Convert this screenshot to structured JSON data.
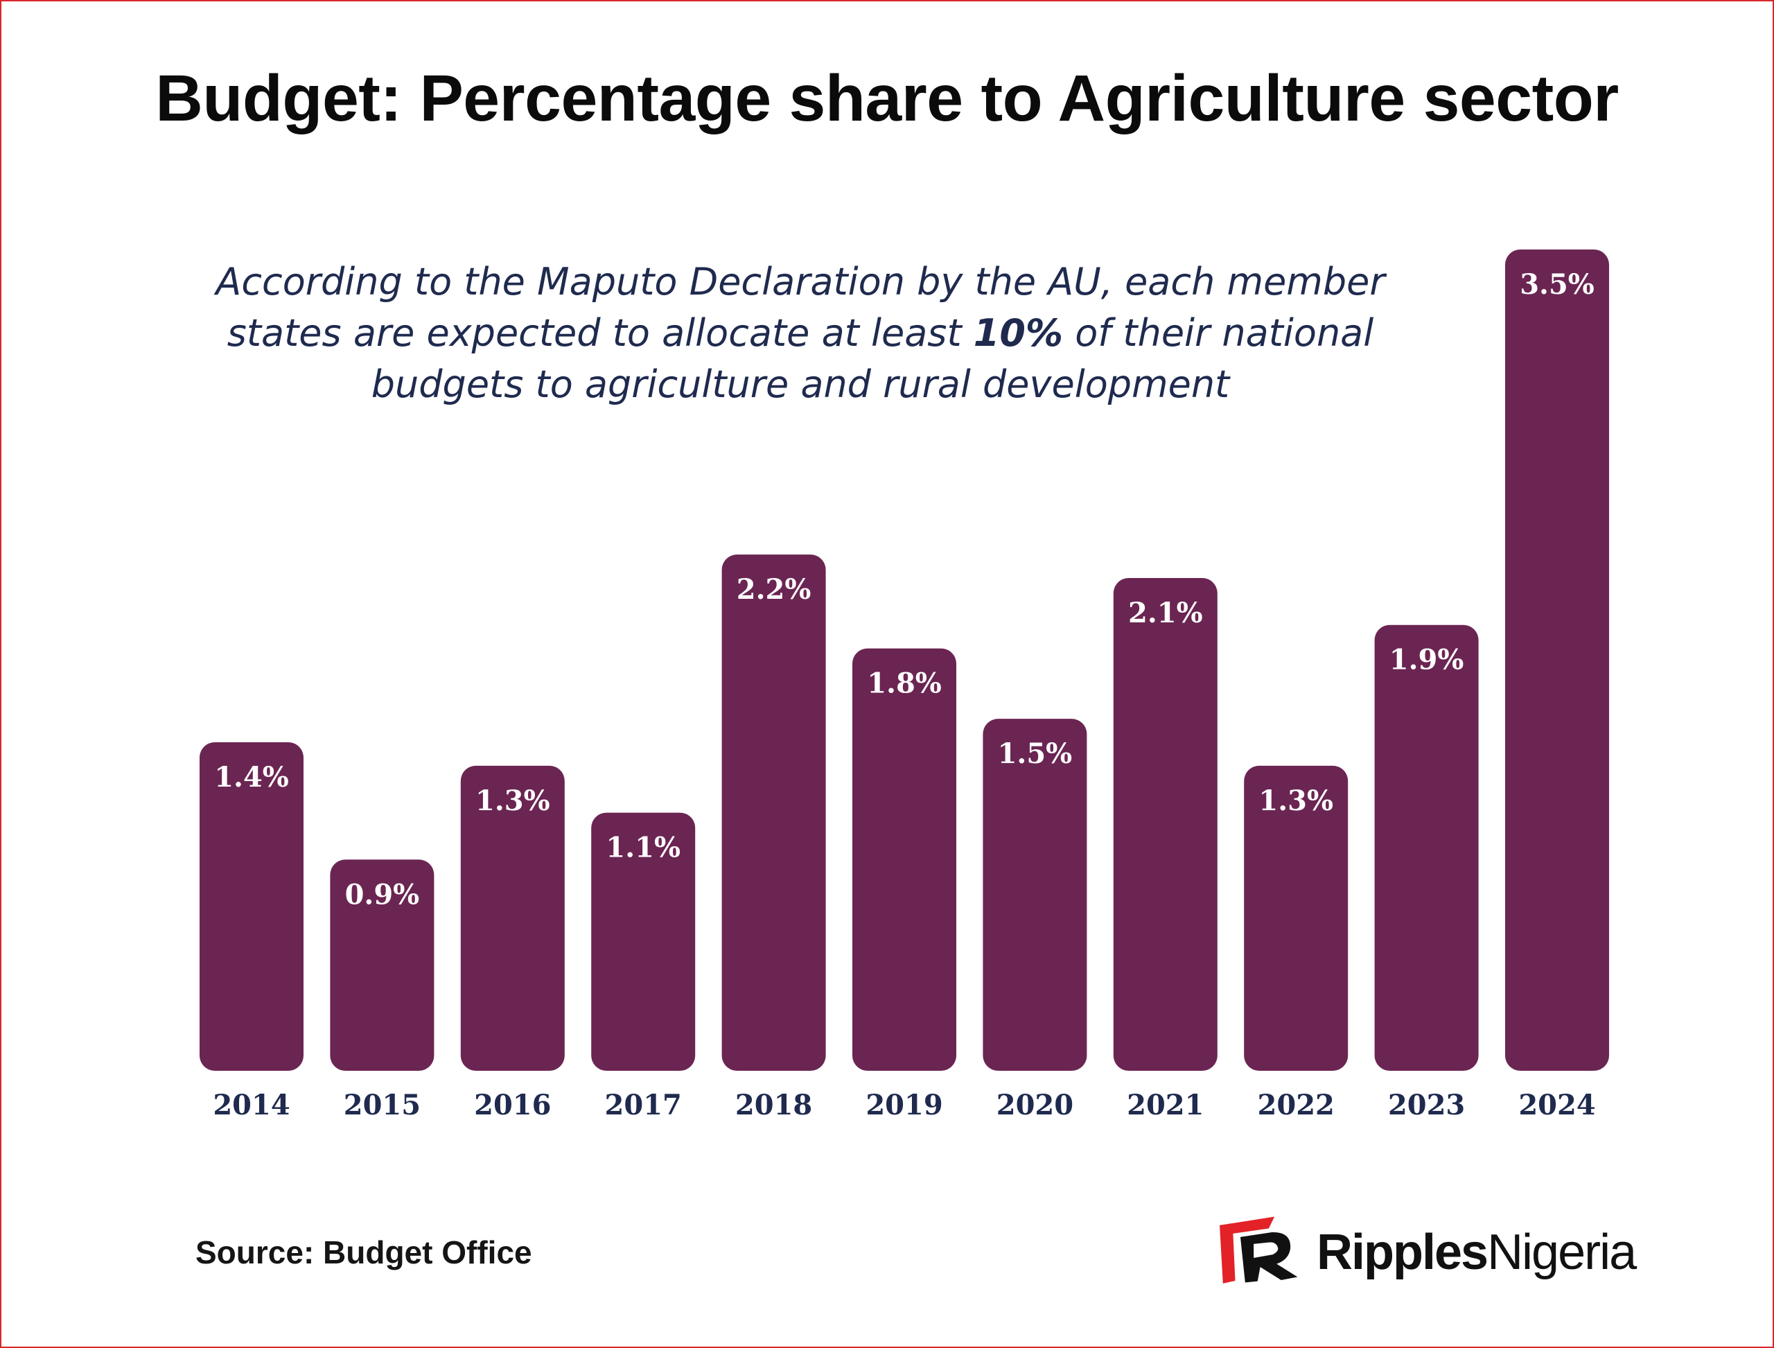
{
  "title": "Budget: Percentage share to Agriculture sector",
  "annotation": {
    "before": "According to the Maputo Declaration by the AU, each member states are expected to allocate at least ",
    "highlight": "10%",
    "after": " of their national budgets to agriculture and rural development"
  },
  "source": "Source: Budget Office",
  "brand": {
    "name_bold": "Ripples",
    "name_regular": "Nigeria",
    "accent_color": "#e32228"
  },
  "colors": {
    "bar": "#6b2552",
    "axis_label": "#1f2a4e",
    "frame": "#d7262b"
  },
  "chart_data": {
    "type": "bar",
    "categories": [
      "2014",
      "2015",
      "2016",
      "2017",
      "2018",
      "2019",
      "2020",
      "2021",
      "2022",
      "2023",
      "2024"
    ],
    "values": [
      1.4,
      0.9,
      1.3,
      1.1,
      2.2,
      1.8,
      1.5,
      2.1,
      1.3,
      1.9,
      3.5
    ],
    "labels": [
      "1.4%",
      "0.9%",
      "1.3%",
      "1.1%",
      "2.2%",
      "1.8%",
      "1.5%",
      "2.1%",
      "1.3%",
      "1.9%",
      "3.5%"
    ],
    "unit": "%",
    "ylim": [
      0,
      3.5
    ],
    "grid": false,
    "legend": "none"
  }
}
